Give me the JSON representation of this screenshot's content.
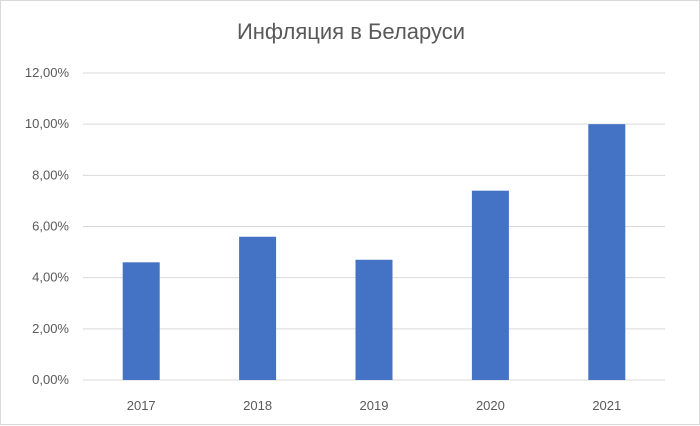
{
  "chart_data": {
    "type": "bar",
    "title": "Инфляция в Беларуси",
    "categories": [
      "2017",
      "2018",
      "2019",
      "2020",
      "2021"
    ],
    "values": [
      4.6,
      5.6,
      4.7,
      7.4,
      10.0
    ],
    "ylim": [
      0,
      12
    ],
    "yticks": [
      0,
      2,
      4,
      6,
      8,
      10,
      12
    ],
    "ytick_labels": [
      "0,00%",
      "2,00%",
      "4,00%",
      "6,00%",
      "8,00%",
      "10,00%",
      "12,00%"
    ],
    "xlabel": "",
    "ylabel": "",
    "grid": true,
    "legend": "none",
    "bar_color": "#4472c4",
    "grid_color": "#d9d9d9"
  }
}
